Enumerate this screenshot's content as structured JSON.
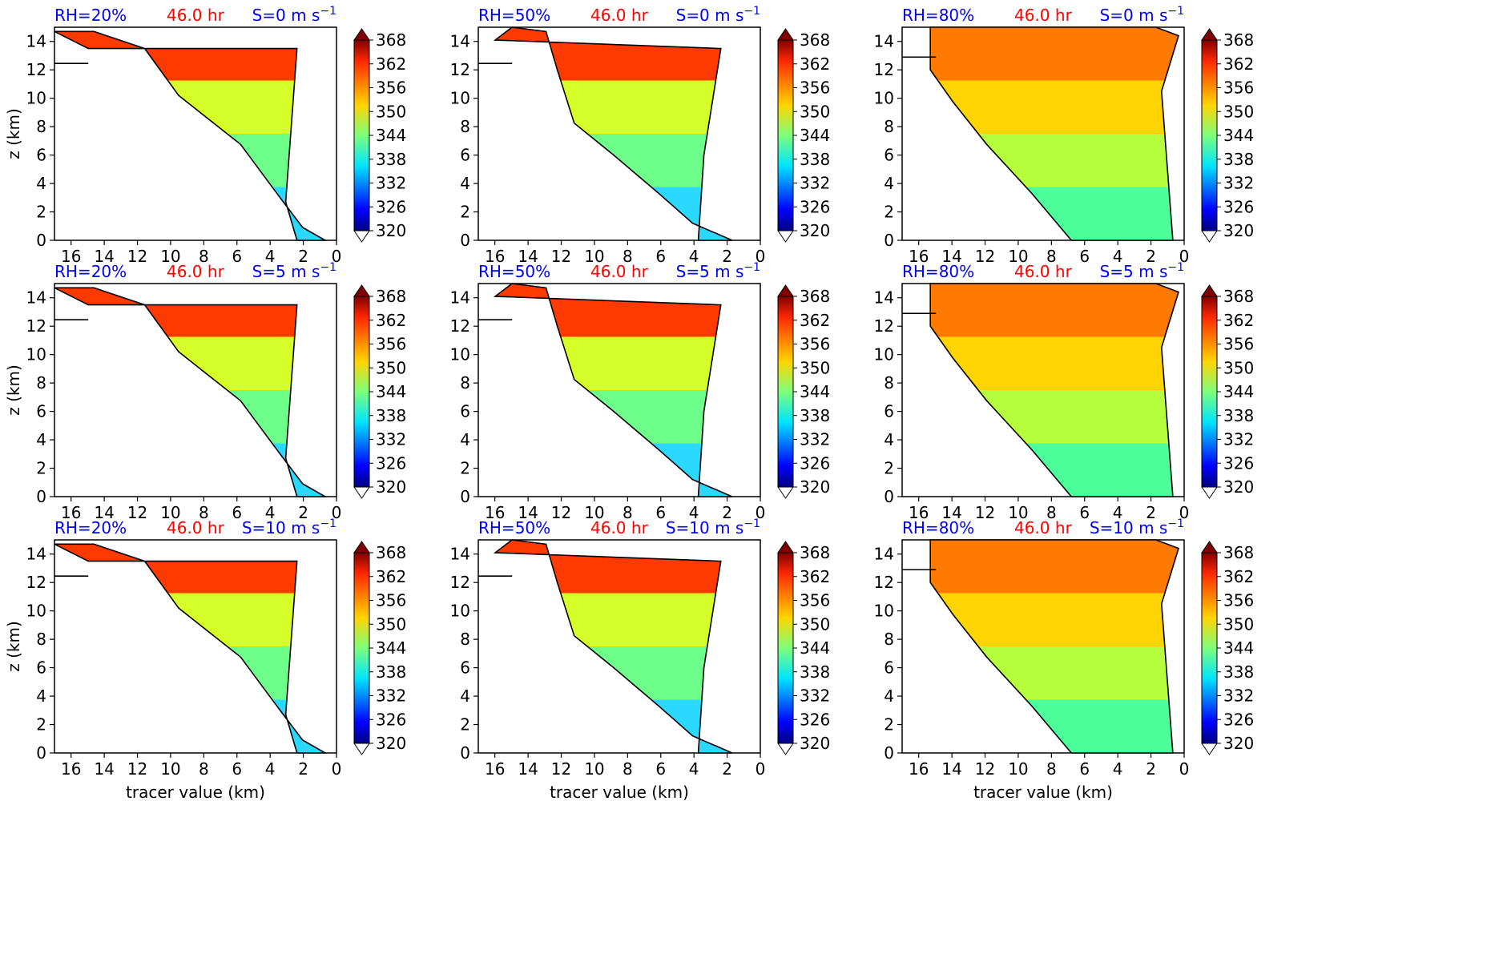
{
  "figure": {
    "time_label": "46.0 hr",
    "xlabel": "tracer value (km)",
    "ylabel": "z (km)",
    "colorbar_ticks": [
      "320",
      "326",
      "332",
      "338",
      "344",
      "350",
      "356",
      "362",
      "368"
    ],
    "colors": {
      "rh": "#0000ff",
      "time": "#ff0000",
      "shear": "#0000ff",
      "contour": "#000000"
    }
  },
  "chart_data": {
    "type": "contour",
    "panels": [
      {
        "rh": "RH=20%",
        "shear": "S=0 m s",
        "row": 0,
        "col": 0
      },
      {
        "rh": "RH=50%",
        "shear": "S=0 m s",
        "row": 0,
        "col": 1
      },
      {
        "rh": "RH=80%",
        "shear": "S=0 m s",
        "row": 0,
        "col": 2
      },
      {
        "rh": "RH=20%",
        "shear": "S=5 m s",
        "row": 1,
        "col": 0
      },
      {
        "rh": "RH=50%",
        "shear": "S=5 m s",
        "row": 1,
        "col": 1
      },
      {
        "rh": "RH=80%",
        "shear": "S=5 m s",
        "row": 1,
        "col": 2
      },
      {
        "rh": "RH=20%",
        "shear": "S=10 m s",
        "row": 2,
        "col": 0
      },
      {
        "rh": "RH=50%",
        "shear": "S=10 m s",
        "row": 2,
        "col": 1
      },
      {
        "rh": "RH=80%",
        "shear": "S=10 m s",
        "row": 2,
        "col": 2
      }
    ],
    "shear_unit_exponent": "−1",
    "x_axis": {
      "reversed": true,
      "xlim": [
        17,
        0
      ],
      "ticks": [
        "16",
        "14",
        "12",
        "10",
        "8",
        "6",
        "4",
        "2",
        "0"
      ]
    },
    "y_axis": {
      "ylim": [
        0,
        15
      ],
      "ticks": [
        "0",
        "2",
        "4",
        "6",
        "8",
        "10",
        "12",
        "14"
      ]
    },
    "colorbar": {
      "min": 320,
      "max": 368,
      "step": 3,
      "extend": "both"
    }
  }
}
